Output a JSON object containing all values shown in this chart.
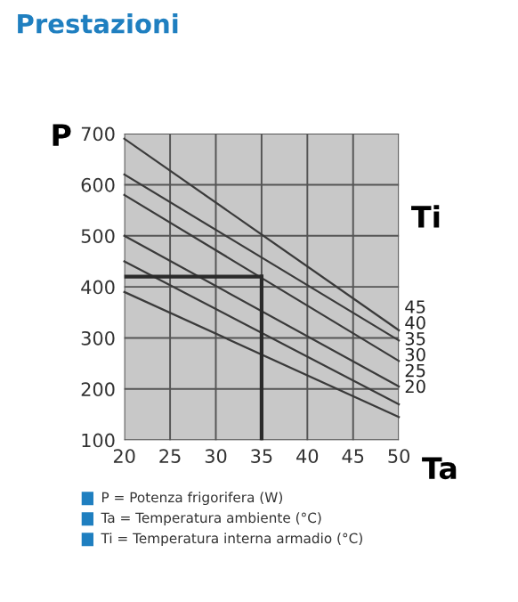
{
  "chart_data": {
    "type": "line",
    "title": "Prestazioni",
    "xlabel": "Ta",
    "ylabel": "P",
    "legend_title": "Ti",
    "x": [
      20,
      50
    ],
    "series": [
      {
        "name": "45",
        "color": "#3a3a3a",
        "values": [
          690,
          315
        ]
      },
      {
        "name": "40",
        "color": "#3a3a3a",
        "values": [
          620,
          295
        ]
      },
      {
        "name": "35",
        "color": "#3a3a3a",
        "values": [
          580,
          255
        ]
      },
      {
        "name": "30",
        "color": "#3a3a3a",
        "values": [
          500,
          205
        ]
      },
      {
        "name": "25",
        "color": "#3a3a3a",
        "values": [
          450,
          170
        ]
      },
      {
        "name": "20",
        "color": "#3a3a3a",
        "values": [
          390,
          145
        ]
      }
    ],
    "xlim": [
      20,
      50
    ],
    "xticks": [
      20,
      25,
      30,
      35,
      40,
      45,
      50
    ],
    "ylim": [
      100,
      700
    ],
    "yticks": [
      100,
      200,
      300,
      400,
      500,
      600,
      700
    ],
    "grid": true,
    "line_style": "solid",
    "ref_lines": [
      {
        "axis": "y",
        "value": 420,
        "color": "#2a2a2a"
      },
      {
        "axis": "x",
        "value": 35,
        "color": "#2a2a2a"
      }
    ],
    "annotations": [
      "P = Potenza frigorifera (W)",
      "Ta = Temperatura ambiente (°C)",
      "Ti = Temperatura interna armadio (°C)"
    ]
  }
}
